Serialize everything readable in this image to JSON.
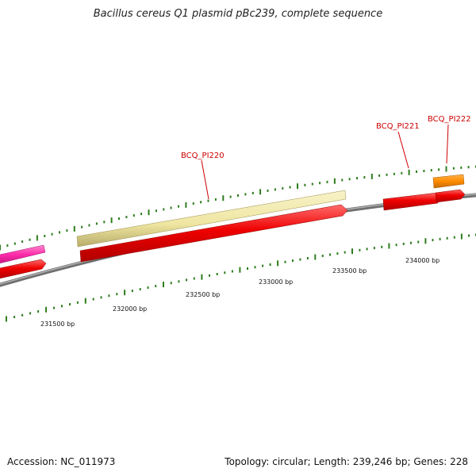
{
  "title": "Bacillus cereus Q1 plasmid pBc239, complete sequence",
  "footer": {
    "accession": "Accession: NC_011973",
    "stats": "Topology: circular; Length: 239,246 bp; Genes: 228"
  },
  "colors": {
    "backbone": "#8a8a8a",
    "cds_forward": "#ee0000",
    "cds_pale": "#f0e8a8",
    "cds_pink": "#ff3fb0",
    "cds_orange": "#ff8c00",
    "label": "#cc0000",
    "tick": "#2e7d1e"
  },
  "gene_labels": [
    "BCQ_PI220",
    "BCQ_PI221",
    "BCQ_PI222"
  ],
  "scale_labels": [
    "231500 bp",
    "232000 bp",
    "232500 bp",
    "233000 bp",
    "233500 bp",
    "234000 bp"
  ]
}
